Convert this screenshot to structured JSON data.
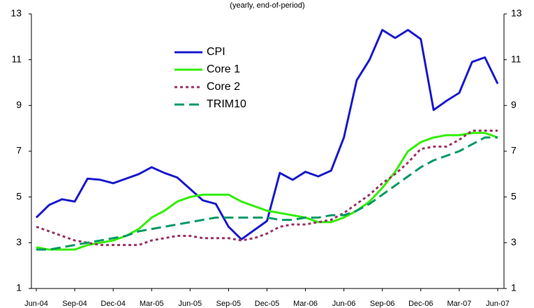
{
  "chart_data": {
    "type": "line",
    "subtitle": "(yearly, end-of-period)",
    "categories": [
      "Jun-04",
      null,
      null,
      "Sep-04",
      null,
      null,
      "Dec-04",
      null,
      null,
      "Mar-05",
      null,
      null,
      "Jun-05",
      null,
      null,
      "Sep-05",
      null,
      null,
      "Dec-05",
      null,
      null,
      "Mar-06",
      null,
      null,
      "Jun-06",
      null,
      null,
      "Sep-06",
      null,
      null,
      "Dec-06",
      null,
      null,
      "Mar-07",
      null,
      null,
      "Jun-07"
    ],
    "series": [
      {
        "name": "CPI",
        "color": "#1a1acc",
        "dash": "solid",
        "values": [
          4.1,
          4.65,
          4.9,
          4.8,
          5.8,
          5.75,
          5.6,
          5.8,
          6.0,
          6.3,
          6.05,
          5.85,
          5.35,
          4.85,
          4.7,
          3.7,
          3.15,
          3.55,
          3.95,
          6.05,
          5.75,
          6.1,
          5.9,
          6.15,
          7.6,
          10.1,
          11.0,
          12.3,
          11.95,
          12.3,
          11.9,
          8.8,
          9.2,
          9.55,
          10.9,
          11.1,
          9.95
        ]
      },
      {
        "name": "Core 1",
        "color": "#33ee00",
        "dash": "solid",
        "values": [
          2.8,
          2.7,
          2.7,
          2.7,
          2.9,
          3.0,
          3.1,
          3.3,
          3.6,
          4.1,
          4.4,
          4.8,
          5.0,
          5.1,
          5.1,
          5.1,
          4.8,
          4.6,
          4.4,
          4.3,
          4.2,
          4.1,
          3.9,
          3.9,
          4.1,
          4.4,
          4.8,
          5.4,
          6.1,
          7.0,
          7.4,
          7.6,
          7.7,
          7.7,
          7.8,
          7.8,
          7.6
        ]
      },
      {
        "name": "Core 2",
        "color": "#993366",
        "dash": "dotted",
        "values": [
          3.7,
          3.5,
          3.3,
          3.1,
          3.0,
          2.9,
          2.9,
          2.9,
          2.9,
          3.1,
          3.2,
          3.3,
          3.3,
          3.2,
          3.2,
          3.2,
          3.1,
          3.2,
          3.4,
          3.7,
          3.8,
          3.8,
          3.9,
          4.0,
          4.3,
          4.7,
          5.1,
          5.6,
          6.0,
          6.5,
          7.1,
          7.2,
          7.2,
          7.5,
          7.9,
          7.9,
          7.9
        ]
      },
      {
        "name": "TRIM10",
        "color": "#009966",
        "dash": "dashed",
        "values": [
          2.7,
          2.7,
          2.8,
          2.9,
          3.0,
          3.1,
          3.2,
          3.3,
          3.5,
          3.6,
          3.7,
          3.8,
          3.9,
          4.0,
          4.1,
          4.1,
          4.1,
          4.1,
          4.1,
          4.0,
          4.0,
          4.1,
          4.1,
          4.2,
          4.2,
          4.4,
          4.7,
          5.1,
          5.5,
          5.9,
          6.3,
          6.6,
          6.8,
          7.0,
          7.3,
          7.6,
          7.6
        ]
      }
    ],
    "ylim": [
      1,
      13
    ],
    "yticks": [
      1,
      3,
      5,
      7,
      9,
      11,
      13
    ],
    "y2lim": [
      1,
      13
    ],
    "y2ticks": [
      1,
      3,
      5,
      7,
      9,
      11,
      13
    ],
    "grid": false,
    "legend": "top-center"
  }
}
